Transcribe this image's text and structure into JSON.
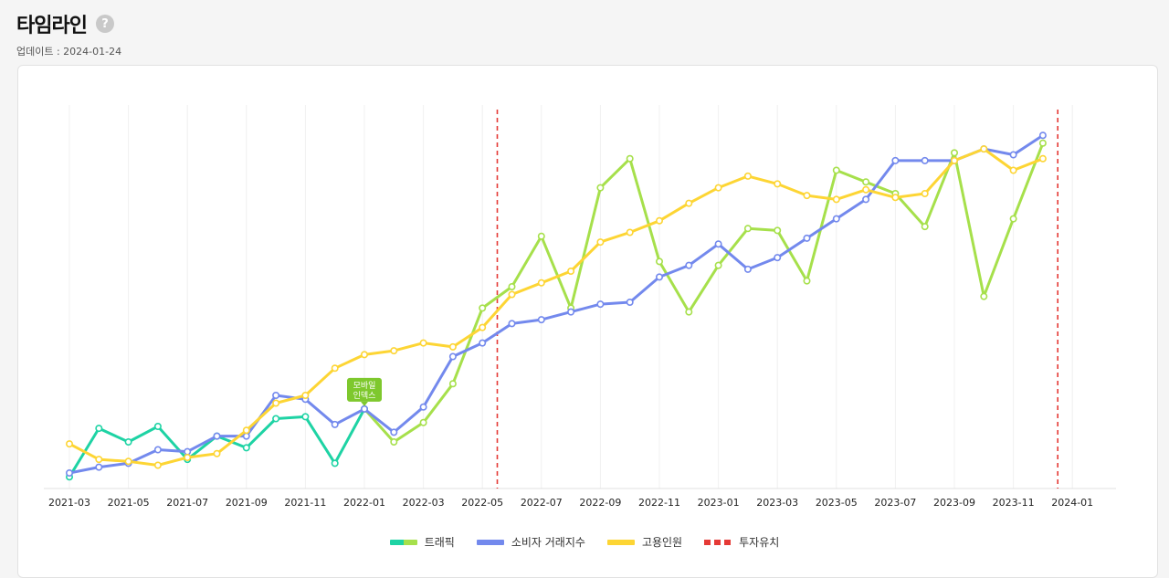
{
  "header": {
    "title": "타임라인",
    "help_icon": "question-mark-icon",
    "updated": "업데이트 : 2024-01-24"
  },
  "chart_data": {
    "type": "line",
    "x_ticks": [
      "2021-03",
      "2021-05",
      "2021-07",
      "2021-09",
      "2021-11",
      "2022-01",
      "2022-03",
      "2022-05",
      "2022-07",
      "2022-09",
      "2022-11",
      "2023-01",
      "2023-03",
      "2023-05",
      "2023-07",
      "2023-09",
      "2023-11",
      "2024-01"
    ],
    "x_months": [
      "2021-03",
      "2021-04",
      "2021-05",
      "2021-06",
      "2021-07",
      "2021-08",
      "2021-09",
      "2021-10",
      "2021-11",
      "2021-12",
      "2022-01",
      "2022-02",
      "2022-03",
      "2022-04",
      "2022-05",
      "2022-06",
      "2022-07",
      "2022-08",
      "2022-09",
      "2022-10",
      "2022-11",
      "2022-12",
      "2023-01",
      "2023-02",
      "2023-03",
      "2023-04",
      "2023-05",
      "2023-06",
      "2023-07",
      "2023-08",
      "2023-09",
      "2023-10",
      "2023-11",
      "2023-12"
    ],
    "grid": "vertical",
    "ylim": [
      0,
      100
    ],
    "series": [
      {
        "name": "트래픽",
        "color": "#1ed3a4",
        "color2": "#a6e04b",
        "color_switch_index": 10,
        "values": [
          3,
          15.5,
          12,
          16,
          7.5,
          13.5,
          10.5,
          18,
          18.5,
          6.5,
          20.5,
          12,
          17,
          27,
          46.5,
          52,
          65,
          46.5,
          77.5,
          85,
          58.5,
          45.5,
          57.5,
          67,
          66.5,
          53.5,
          82,
          79,
          76,
          67.5,
          86.5,
          49.5,
          69.5,
          89
        ]
      },
      {
        "name": "소비자 거래지수",
        "color": "#7389ed",
        "values": [
          4,
          5.5,
          6.5,
          10,
          9.5,
          13.5,
          13.5,
          24,
          23,
          16.5,
          20.5,
          14.5,
          21,
          34,
          37.5,
          42.5,
          43.5,
          45.5,
          47.5,
          48,
          54.5,
          57.5,
          63,
          56.5,
          59.5,
          64.5,
          69.5,
          74.5,
          84.5,
          84.5,
          84.5,
          87.5,
          86,
          91
        ]
      },
      {
        "name": "고용인원",
        "color": "#fdd534",
        "values": [
          11.5,
          7.5,
          7,
          6,
          8,
          9,
          15,
          22,
          24,
          31,
          34.5,
          35.5,
          37.5,
          36.5,
          41.5,
          50,
          53,
          56,
          63.5,
          66,
          69,
          73.5,
          77.5,
          80.5,
          78.5,
          75.5,
          74.5,
          77,
          75,
          76,
          84.5,
          87.5,
          82,
          85
        ]
      }
    ],
    "vlines": [
      {
        "name": "투자유치",
        "color": "#e53935",
        "dates": [
          "2022-06",
          "2024-01"
        ]
      }
    ],
    "annotation": {
      "text_line1": "모바일",
      "text_line2": "인덱스",
      "month": "2022-01"
    },
    "legend": [
      "트래픽",
      "소비자 거래지수",
      "고용인원",
      "투자유치"
    ]
  }
}
